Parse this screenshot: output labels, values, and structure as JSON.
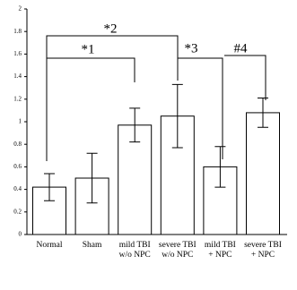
{
  "chart_data": {
    "type": "bar",
    "categories": [
      "Normal",
      "Sham",
      "mild TBI\nw/o NPC",
      "severe TBI\nw/o NPC",
      "mild TBI\n+ NPC",
      "severe TBI\n+ NPC"
    ],
    "values": [
      0.42,
      0.5,
      0.97,
      1.05,
      0.6,
      1.08
    ],
    "errors": [
      0.12,
      0.22,
      0.15,
      0.28,
      0.18,
      0.13
    ],
    "color": "#ffffff",
    "ylim": [
      0,
      2
    ],
    "yticks": [
      0,
      0.2,
      0.4,
      0.6,
      0.8,
      1,
      1.2,
      1.4,
      1.6,
      1.8,
      2
    ],
    "annotations": [
      "*2",
      "*1",
      "*3",
      "#4"
    ]
  }
}
